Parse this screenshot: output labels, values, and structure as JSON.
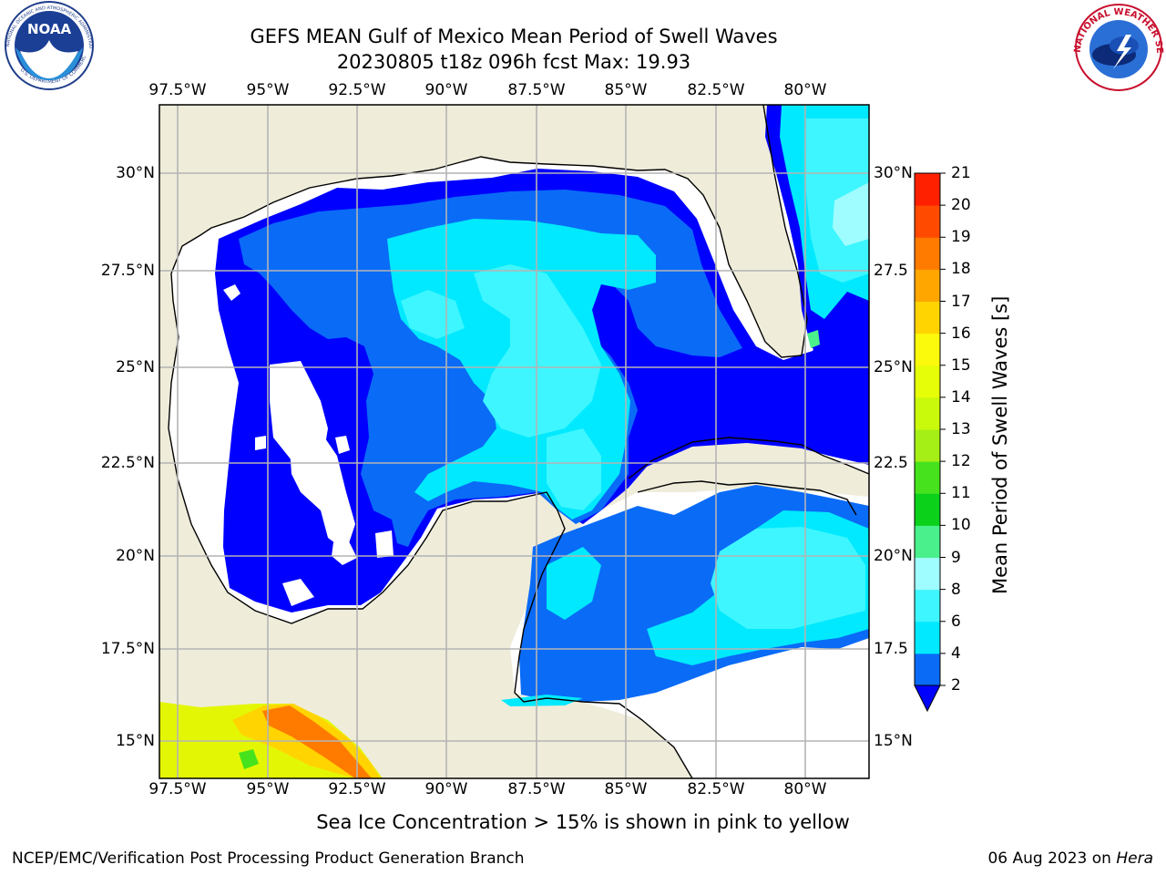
{
  "title": {
    "line1": "GEFS MEAN Gulf of Mexico Mean Period of Swell Waves",
    "line2": "20230805 t18z 096h fcst   Max: 19.93"
  },
  "axes": {
    "lon_labels": [
      "97.5°W",
      "95°W",
      "92.5°W",
      "90°W",
      "87.5°W",
      "85°W",
      "82.5°W",
      "80°W"
    ],
    "lat_labels": [
      "30°N",
      "27.5°N",
      "25°N",
      "22.5°N",
      "20°N",
      "17.5°N",
      "15°N"
    ],
    "right_lat_labels": [
      "30°N",
      "27.5",
      "25°N",
      "22.5",
      "20°N",
      "17.5",
      "15°N"
    ]
  },
  "colorbar": {
    "title": "Mean Period of Swell Waves [s]",
    "levels": [
      "2",
      "4",
      "6",
      "8",
      "9",
      "10",
      "11",
      "12",
      "13",
      "14",
      "15",
      "16",
      "17",
      "18",
      "19",
      "20",
      "21"
    ],
    "colors": [
      "#0a6bf7",
      "#00e9fe",
      "#3ef6ff",
      "#9ffcff",
      "#4af08b",
      "#0bd11b",
      "#46e21d",
      "#a5ef16",
      "#c9f90b",
      "#e6fe08",
      "#fbfa0c",
      "#ffd400",
      "#ffa600",
      "#ff7b00",
      "#ff4a00",
      "#ff2000"
    ],
    "extend_color": "#0000ff"
  },
  "note": "Sea Ice Concentration > 15% is shown in pink to yellow",
  "footer": {
    "left": "NCEP/EMC/Verification Post Processing Product Generation Branch",
    "right_prefix": "06 Aug 2023 on ",
    "right_host": "Hera"
  },
  "logos": {
    "noaa_text": "NOAA",
    "noaa_ring_top": "NATIONAL OCEANIC AND ATMOSPHERIC ADMINISTRATION",
    "noaa_ring_bottom": "U.S. DEPARTMENT OF COMMERCE",
    "nws_ring": "NATIONAL WEATHER SERVICE"
  },
  "map_colors": {
    "land": "#efecda",
    "deep_blue": "#0000ff",
    "blue": "#0a6bf7",
    "cyan": "#00e9fe",
    "light_cyan": "#3ef6ff",
    "pale_cyan": "#9ffcff",
    "green": "#4af08b",
    "grid": "#b4b4b4"
  }
}
